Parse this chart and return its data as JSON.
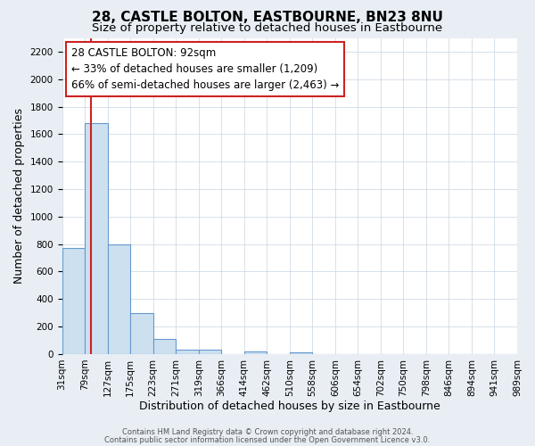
{
  "title": "28, CASTLE BOLTON, EASTBOURNE, BN23 8NU",
  "subtitle": "Size of property relative to detached houses in Eastbourne",
  "xlabel": "Distribution of detached houses by size in Eastbourne",
  "ylabel": "Number of detached properties",
  "bins": [
    "31sqm",
    "79sqm",
    "127sqm",
    "175sqm",
    "223sqm",
    "271sqm",
    "319sqm",
    "366sqm",
    "414sqm",
    "462sqm",
    "510sqm",
    "558sqm",
    "606sqm",
    "654sqm",
    "702sqm",
    "750sqm",
    "798sqm",
    "846sqm",
    "894sqm",
    "941sqm",
    "989sqm"
  ],
  "bar_values": [
    775,
    1680,
    795,
    295,
    110,
    35,
    35,
    0,
    20,
    0,
    15,
    0,
    0,
    0,
    0,
    0,
    0,
    0,
    0,
    0
  ],
  "bar_color": "#cce0f0",
  "bar_edge_color": "#6699cc",
  "vline_color": "#cc2222",
  "vline_x": 1.27,
  "ylim": [
    0,
    2300
  ],
  "yticks": [
    0,
    200,
    400,
    600,
    800,
    1000,
    1200,
    1400,
    1600,
    1800,
    2000,
    2200
  ],
  "annotation_title": "28 CASTLE BOLTON: 92sqm",
  "annotation_line1": "← 33% of detached houses are smaller (1,209)",
  "annotation_line2": "66% of semi-detached houses are larger (2,463) →",
  "footer_line1": "Contains HM Land Registry data © Crown copyright and database right 2024.",
  "footer_line2": "Contains public sector information licensed under the Open Government Licence v3.0.",
  "bg_color": "#e8eef4",
  "plot_bg_color": "#ffffff",
  "grid_color": "#c8d4e0",
  "title_fontsize": 11,
  "subtitle_fontsize": 9.5,
  "axis_label_fontsize": 9,
  "tick_fontsize": 7.5,
  "annotation_fontsize": 8.5,
  "footer_fontsize": 6
}
